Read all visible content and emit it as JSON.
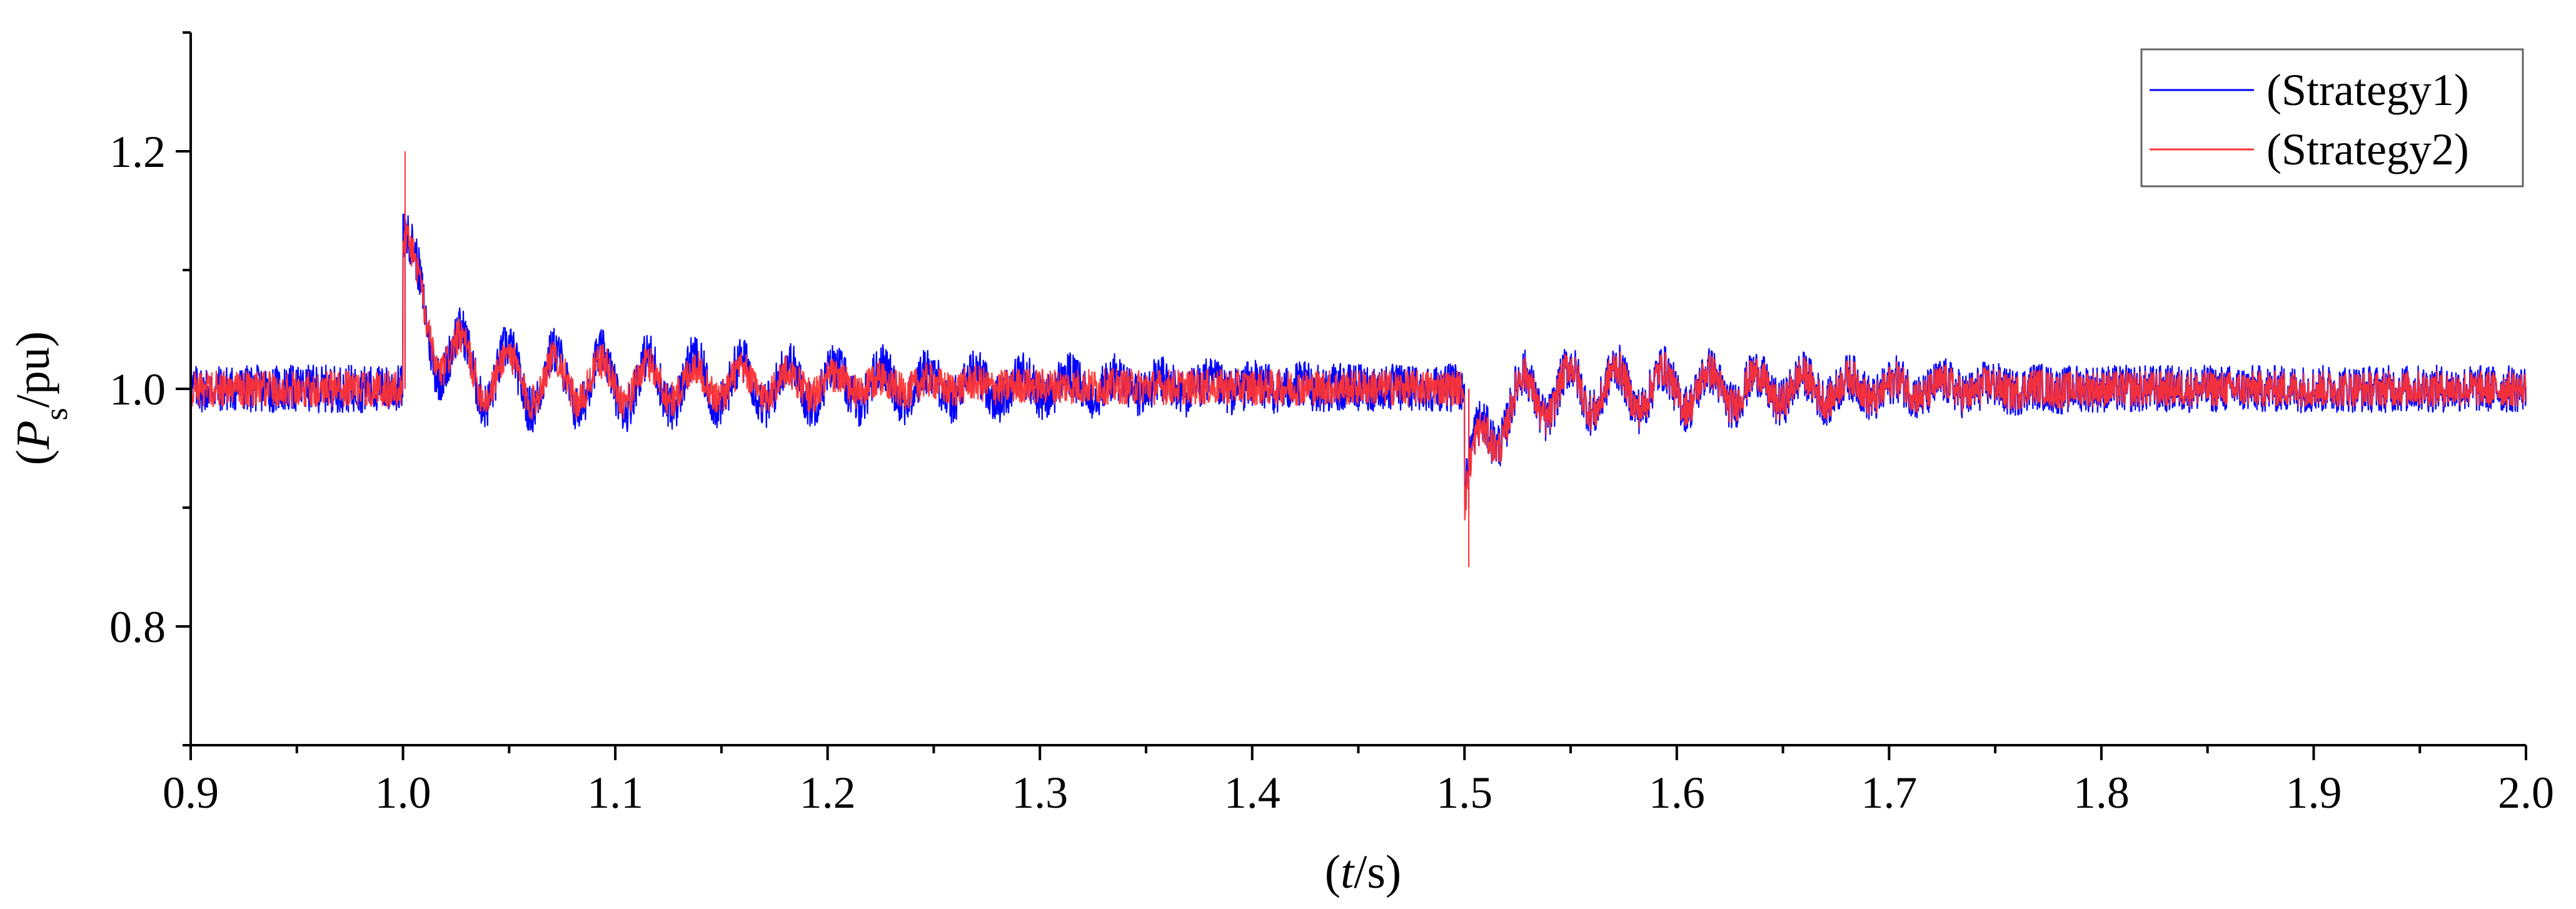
{
  "chart_data": {
    "type": "line",
    "title": "",
    "xlabel": {
      "open": "(",
      "var": "t",
      "rest": "/s)"
    },
    "ylabel": {
      "open": "(",
      "var": "P",
      "sub": "s",
      "rest": "/pu)"
    },
    "xlim": [
      0.9,
      2.0
    ],
    "ylim": [
      0.7,
      1.3
    ],
    "x_ticks": [
      "0.9",
      "1.0",
      "1.1",
      "1.2",
      "1.3",
      "1.4",
      "1.5",
      "1.6",
      "1.7",
      "1.8",
      "1.9",
      "2.0"
    ],
    "y_ticks": [
      "0.8",
      "1.0",
      "1.2"
    ],
    "grid": false,
    "legend_position": "top-right",
    "series": [
      {
        "name": "(Strategy1)",
        "color": "#0000ff",
        "baseline": 1.0,
        "noise_amplitude": 0.02,
        "events": [
          {
            "x": 1.0,
            "type": "step-up",
            "spike_peak": 1.15,
            "first_peak": 1.12,
            "oscillation_amplitude": 0.03,
            "oscillation_period": 0.022,
            "decays_by": 1.45
          },
          {
            "x": 1.5,
            "type": "step-down",
            "spike_min": 0.9,
            "first_trough": 0.91,
            "oscillation_amplitude": 0.025,
            "oscillation_period": 0.022,
            "decays_by": 1.8
          }
        ]
      },
      {
        "name": "(Strategy2)",
        "color": "#ff3333",
        "baseline": 1.0,
        "noise_amplitude": 0.015,
        "events": [
          {
            "x": 1.0,
            "type": "step-up",
            "spike_peak": 1.2,
            "first_peak": 1.12,
            "oscillation_amplitude": 0.025,
            "oscillation_period": 0.022,
            "decays_by": 1.3
          },
          {
            "x": 1.5,
            "type": "step-down",
            "spike_min": 0.85,
            "first_trough": 0.9,
            "oscillation_amplitude": 0.025,
            "oscillation_period": 0.022,
            "decays_by": 1.8
          }
        ]
      }
    ]
  }
}
